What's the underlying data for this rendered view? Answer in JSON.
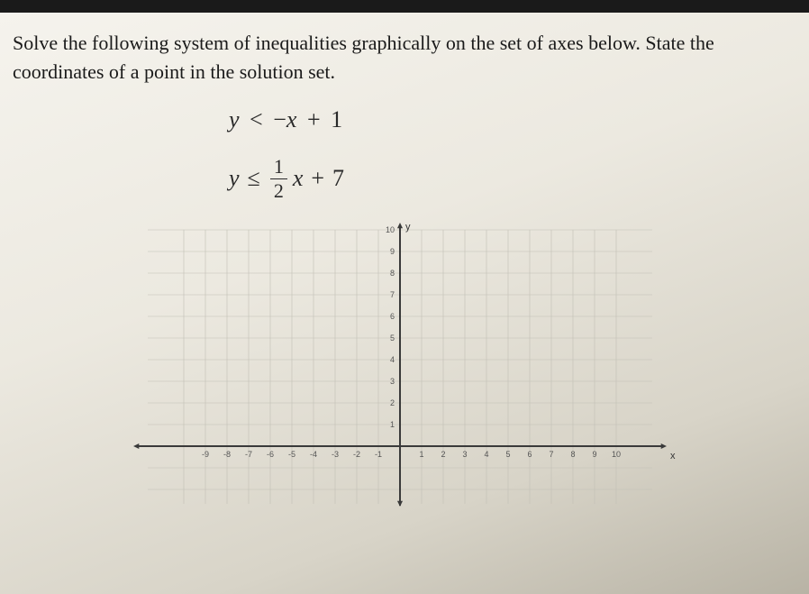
{
  "question": {
    "line1": "Solve the following system of inequalities graphically on the set of axes below. State the",
    "line2": "coordinates of a point in the solution set."
  },
  "inequalities": {
    "eq1": {
      "lhs_var": "y",
      "relation": "<",
      "rhs_prefix": "−",
      "rhs_var": "x",
      "rhs_op": "+",
      "rhs_const": "1"
    },
    "eq2": {
      "lhs_var": "y",
      "relation": "≤",
      "frac_num": "1",
      "frac_den": "2",
      "rhs_var": "x",
      "rhs_op": "+",
      "rhs_const": "7"
    }
  },
  "graph": {
    "type": "cartesian-axes",
    "x_axis_label": "x",
    "y_axis_label": "y",
    "xlim": [
      -10,
      10
    ],
    "ylim_visible": [
      -3,
      10
    ],
    "tick_step": 1,
    "y_ticks": [
      "10",
      "9",
      "8",
      "7",
      "6",
      "5",
      "4",
      "3",
      "2",
      "1"
    ],
    "x_ticks_neg": [
      "-9",
      "-8",
      "-7",
      "-6",
      "-5",
      "-4",
      "-3",
      "-2",
      "-1"
    ],
    "x_ticks_pos": [
      "1",
      "2",
      "3",
      "4",
      "5",
      "6",
      "7",
      "8",
      "9",
      "10"
    ],
    "colors": {
      "axis": "#3a3a3a",
      "grid": "#c2bfb5",
      "tick_label": "#555555",
      "background": "transparent"
    },
    "line_width": {
      "axis": 2,
      "grid": 0.6
    },
    "arrow_size": 7
  }
}
